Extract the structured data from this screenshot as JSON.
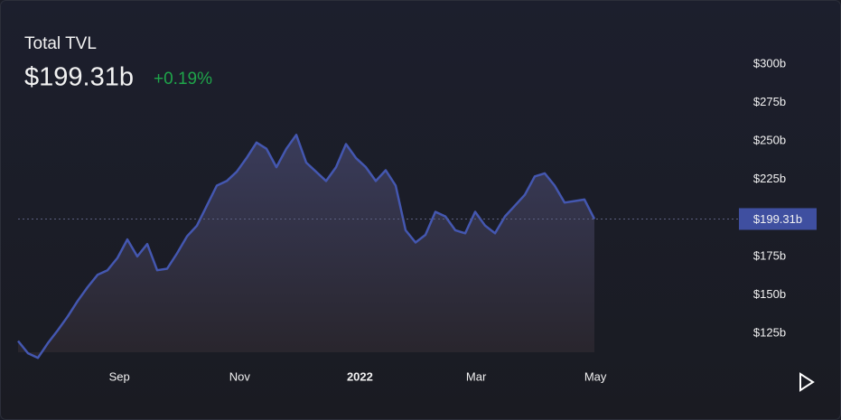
{
  "chart_data": {
    "type": "area",
    "title": "Total TVL",
    "value_label": "$199.31b",
    "change": "+0.19%",
    "color": "#4457b0",
    "values": [
      120,
      112,
      109,
      118.6,
      127,
      136,
      146,
      155,
      163,
      166,
      174,
      186,
      175,
      183,
      166,
      167,
      177,
      188,
      195,
      208,
      221,
      224,
      230,
      239,
      249,
      245,
      233,
      245,
      254,
      236,
      230,
      224,
      233,
      248,
      239,
      233,
      224,
      231,
      221,
      192,
      184,
      189,
      204,
      201,
      192,
      190,
      204,
      195,
      190,
      201,
      208,
      215,
      227,
      229,
      221,
      210,
      211,
      212,
      199.31
    ],
    "xlim": [
      0,
      58
    ],
    "xticks": [
      {
        "value": 10.2,
        "label": "Sep"
      },
      {
        "value": 22.3,
        "label": "Nov"
      },
      {
        "value": 34.4,
        "label": "2022"
      },
      {
        "value": 46.1,
        "label": "Mar"
      },
      {
        "value": 58.1,
        "label": "May"
      }
    ],
    "ylim": [
      105,
      310
    ],
    "yticks": [
      {
        "value": 125,
        "label": "$125b"
      },
      {
        "value": 150,
        "label": "$150b"
      },
      {
        "value": 175,
        "label": "$175b"
      },
      {
        "value": 225,
        "label": "$225b"
      },
      {
        "value": 250,
        "label": "$250b"
      },
      {
        "value": 275,
        "label": "$275b"
      },
      {
        "value": 300,
        "label": "$300b"
      }
    ]
  }
}
